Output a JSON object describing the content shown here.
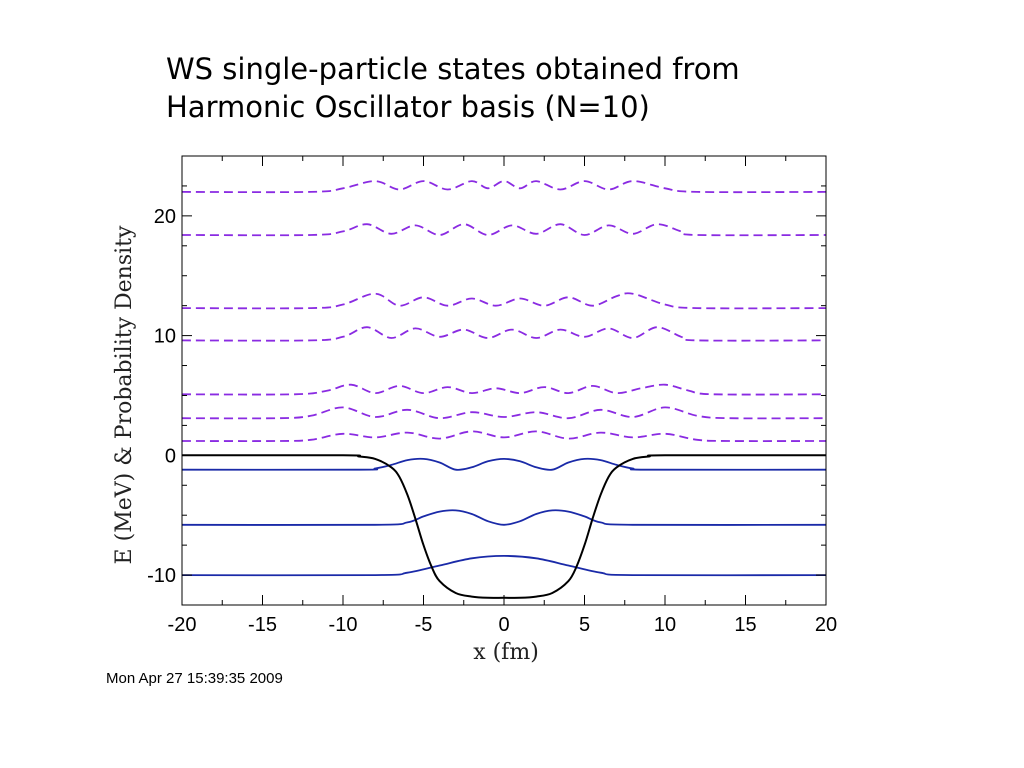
{
  "slide": {
    "title_lines": [
      "WS single-particle states obtained from",
      "Harmonic Oscillator basis (N=10)"
    ]
  },
  "footer": {
    "timestamp": "Mon Apr 27 15:39:35 2009"
  },
  "colors": {
    "potential": "#000000",
    "bound_states": "#1a2aa8",
    "continuum_states": "#8a2be2"
  },
  "chart_data": {
    "type": "line",
    "xlabel": "x (fm)",
    "ylabel": "E (MeV) & Probability Density",
    "xlim": [
      -20,
      20
    ],
    "ylim": [
      -12.5,
      25
    ],
    "xticks": [
      -20,
      -15,
      -10,
      -5,
      0,
      5,
      10,
      15,
      20
    ],
    "yticks": [
      -10,
      0,
      10,
      20
    ],
    "grid": false,
    "legend": "none",
    "potential": {
      "style": "solid",
      "color": "#000000",
      "x": [
        -20,
        -10,
        -9,
        -8,
        -7,
        -6.5,
        -6,
        -5.5,
        -5,
        -4.5,
        -4,
        -3,
        -2,
        -1,
        0,
        1,
        2,
        3,
        4,
        4.5,
        5,
        5.5,
        6,
        6.5,
        7,
        8,
        9,
        10,
        20
      ],
      "y": [
        0,
        0,
        -0.1,
        -0.3,
        -1,
        -1.8,
        -3.3,
        -5.3,
        -7.5,
        -9.3,
        -10.5,
        -11.5,
        -11.8,
        -11.9,
        -11.9,
        -11.9,
        -11.8,
        -11.5,
        -10.5,
        -9.3,
        -7.5,
        -5.3,
        -3.3,
        -1.8,
        -1,
        -0.3,
        -0.1,
        0,
        0
      ]
    },
    "series": [
      {
        "style": "solid",
        "color": "#1a2aa8",
        "x": [
          -20,
          -8,
          -6,
          -4,
          -2,
          0,
          2,
          4,
          6,
          8,
          20
        ],
        "y": [
          -10,
          -10,
          -9.8,
          -9.2,
          -8.6,
          -8.4,
          -8.6,
          -9.2,
          -9.8,
          -10,
          -10
        ]
      },
      {
        "style": "solid",
        "color": "#1a2aa8",
        "x": [
          -20,
          -8,
          -6,
          -5,
          -4,
          -3,
          -2,
          -1,
          0,
          1,
          2,
          3,
          4,
          5,
          6,
          8,
          20
        ],
        "y": [
          -5.8,
          -5.8,
          -5.6,
          -5.1,
          -4.7,
          -4.6,
          -4.9,
          -5.5,
          -5.8,
          -5.5,
          -4.9,
          -4.6,
          -4.7,
          -5.1,
          -5.6,
          -5.8,
          -5.8
        ]
      },
      {
        "style": "solid",
        "color": "#1a2aa8",
        "x": [
          -20,
          -9,
          -8,
          -7,
          -6,
          -5,
          -4,
          -3,
          -2,
          -1,
          0,
          1,
          2,
          3,
          4,
          5,
          6,
          7,
          8,
          9,
          20
        ],
        "y": [
          -1.2,
          -1.2,
          -1.1,
          -0.8,
          -0.4,
          -0.3,
          -0.6,
          -1.2,
          -1.0,
          -0.5,
          -0.3,
          -0.5,
          -1.0,
          -1.2,
          -0.6,
          -0.3,
          -0.4,
          -0.8,
          -1.1,
          -1.2,
          -1.2
        ]
      },
      {
        "style": "dashed",
        "color": "#8a2be2",
        "x": [
          -20,
          -14,
          -12,
          -10,
          -8,
          -6,
          -4,
          -2,
          0,
          2,
          4,
          6,
          8,
          10,
          12,
          14,
          20
        ],
        "y": [
          1.2,
          1.2,
          1.3,
          1.8,
          1.5,
          1.9,
          1.4,
          2.0,
          1.5,
          2.0,
          1.4,
          1.9,
          1.5,
          1.8,
          1.3,
          1.2,
          1.2
        ]
      },
      {
        "style": "dashed",
        "color": "#8a2be2",
        "x": [
          -20,
          -14,
          -12,
          -10,
          -8,
          -6,
          -4,
          -2,
          0,
          2,
          4,
          6,
          8,
          10,
          12,
          14,
          20
        ],
        "y": [
          3.1,
          3.1,
          3.3,
          4.0,
          3.2,
          3.8,
          3.1,
          3.6,
          3.2,
          3.6,
          3.1,
          3.8,
          3.2,
          4.0,
          3.3,
          3.1,
          3.1
        ]
      },
      {
        "style": "dashed",
        "color": "#8a2be2",
        "x": [
          -20,
          -13,
          -11,
          -9.5,
          -8,
          -6.5,
          -5,
          -3.5,
          -2,
          -0.5,
          1,
          2.5,
          4,
          5.5,
          7,
          8.5,
          10,
          11.5,
          13,
          20
        ],
        "y": [
          5.1,
          5.1,
          5.4,
          5.9,
          5.2,
          5.8,
          5.2,
          5.7,
          5.2,
          5.6,
          5.2,
          5.7,
          5.2,
          5.8,
          5.2,
          5.6,
          5.9,
          5.4,
          5.1,
          5.1
        ]
      },
      {
        "style": "dashed",
        "color": "#8a2be2",
        "x": [
          -20,
          -12,
          -10,
          -8.5,
          -7,
          -5.5,
          -4,
          -2.5,
          -1,
          0.5,
          2,
          3.5,
          5,
          6.5,
          8,
          9.5,
          11,
          12,
          20
        ],
        "y": [
          9.6,
          9.6,
          9.9,
          10.7,
          9.8,
          10.6,
          9.9,
          10.5,
          9.8,
          10.5,
          9.8,
          10.5,
          9.9,
          10.6,
          9.8,
          10.7,
          9.9,
          9.6,
          9.6
        ]
      },
      {
        "style": "dashed",
        "color": "#8a2be2",
        "x": [
          -20,
          -12,
          -10,
          -8,
          -6.5,
          -5,
          -3.5,
          -2,
          -0.5,
          1,
          2.5,
          4,
          5.5,
          7,
          8,
          10,
          12,
          20
        ],
        "y": [
          12.3,
          12.3,
          12.6,
          13.5,
          12.5,
          13.2,
          12.5,
          13.1,
          12.5,
          13.1,
          12.5,
          13.2,
          12.5,
          13.3,
          13.5,
          12.6,
          12.3,
          12.3
        ]
      },
      {
        "style": "dashed",
        "color": "#8a2be2",
        "x": [
          -20,
          -12,
          -10,
          -8.5,
          -7,
          -5.5,
          -4,
          -2.5,
          -1,
          0.5,
          2,
          3.5,
          5,
          6.5,
          8,
          9.5,
          11,
          12,
          20
        ],
        "y": [
          18.4,
          18.4,
          18.7,
          19.3,
          18.5,
          19.2,
          18.4,
          19.3,
          18.4,
          19.2,
          18.5,
          19.3,
          18.4,
          19.2,
          18.5,
          19.3,
          18.7,
          18.4,
          18.4
        ]
      },
      {
        "style": "dashed",
        "color": "#8a2be2",
        "x": [
          -20,
          -12,
          -10,
          -8,
          -6.5,
          -5,
          -3.5,
          -2,
          -1,
          0,
          1,
          2,
          3.5,
          5,
          6.5,
          8,
          10,
          12,
          20
        ],
        "y": [
          22.0,
          22.0,
          22.3,
          22.9,
          22.2,
          22.9,
          22.2,
          22.9,
          22.3,
          22.9,
          22.3,
          22.9,
          22.2,
          22.9,
          22.2,
          22.9,
          22.3,
          22.0,
          22.0
        ]
      }
    ]
  }
}
